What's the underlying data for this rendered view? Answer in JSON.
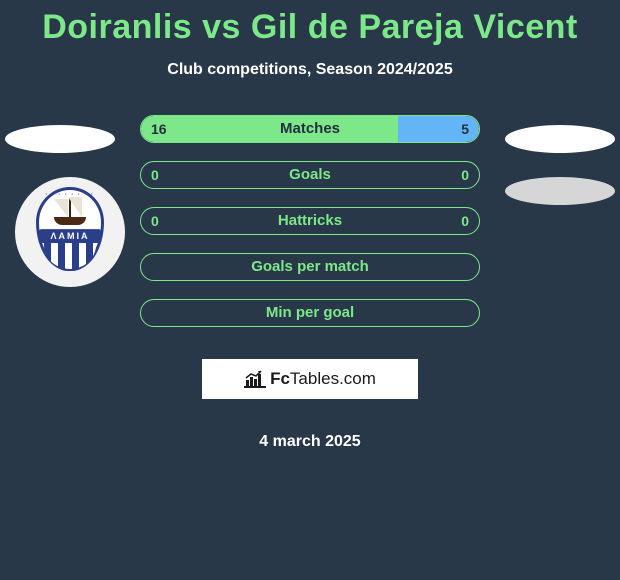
{
  "colors": {
    "background": "#283848",
    "accent_green": "#7de88a",
    "accent_blue": "#64b5f6",
    "text_white": "#ffffff",
    "text_dark": "#233040"
  },
  "title": "Doiranlis vs Gil de Pareja Vicent",
  "subtitle": "Club competitions, Season 2024/2025",
  "date": "4 march 2025",
  "brand": {
    "text_bold": "Fc",
    "text_normal": "Tables",
    "text_suffix": ".com"
  },
  "crest": {
    "band_text": "ΛΑΜΙΑ"
  },
  "rows": [
    {
      "label": "Matches",
      "left_value": "16",
      "right_value": "5",
      "left_fill_pct": 76,
      "right_fill_pct": 24,
      "left_val_on_fill": true,
      "right_val_on_fill": true
    },
    {
      "label": "Goals",
      "left_value": "0",
      "right_value": "0",
      "left_fill_pct": 0,
      "right_fill_pct": 0,
      "left_val_on_fill": false,
      "right_val_on_fill": false
    },
    {
      "label": "Hattricks",
      "left_value": "0",
      "right_value": "0",
      "left_fill_pct": 0,
      "right_fill_pct": 0,
      "left_val_on_fill": false,
      "right_val_on_fill": false
    },
    {
      "label": "Goals per match",
      "left_value": "",
      "right_value": "",
      "left_fill_pct": 0,
      "right_fill_pct": 0,
      "left_val_on_fill": false,
      "right_val_on_fill": false
    },
    {
      "label": "Min per goal",
      "left_value": "",
      "right_value": "",
      "left_fill_pct": 0,
      "right_fill_pct": 0,
      "left_val_on_fill": false,
      "right_val_on_fill": false
    }
  ]
}
